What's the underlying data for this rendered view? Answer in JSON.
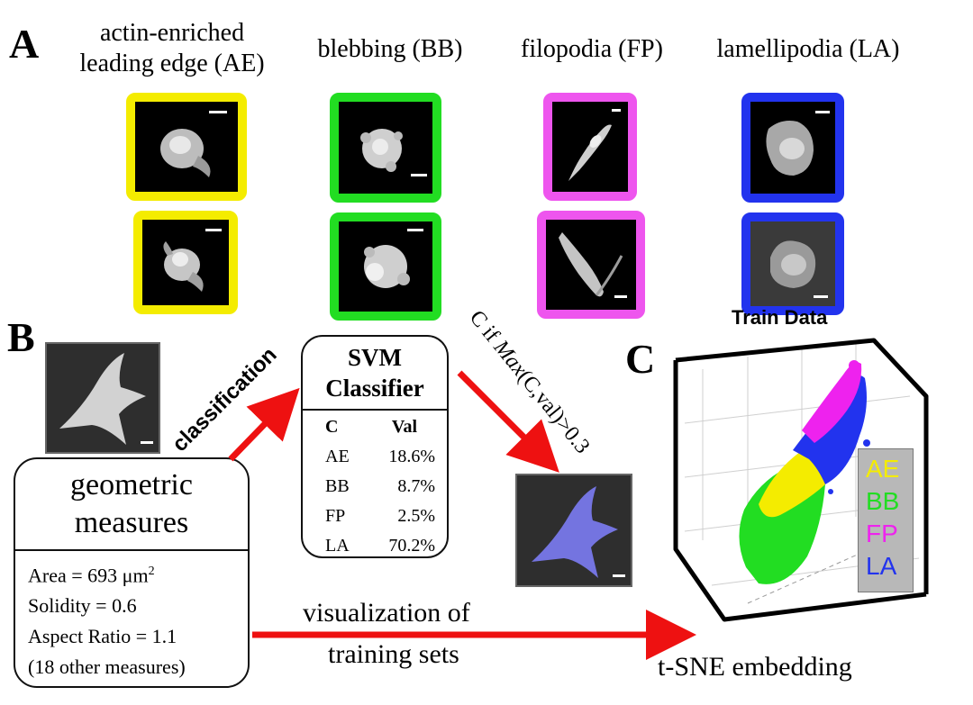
{
  "panels": {
    "a": "A",
    "b": "B",
    "c": "C"
  },
  "categories": [
    {
      "code": "AE",
      "title_line1": "actin-enriched",
      "title_line2": "leading edge (AE)",
      "color": "#f4ec00"
    },
    {
      "code": "BB",
      "title_line1": "blebbing (BB)",
      "title_line2": "",
      "color": "#22dd22"
    },
    {
      "code": "FP",
      "title_line1": "filopodia (FP)",
      "title_line2": "",
      "color": "#ee55ee"
    },
    {
      "code": "LA",
      "title_line1": "lamellipodia (LA)",
      "title_line2": "",
      "color": "#2233ee"
    }
  ],
  "geometric": {
    "title_line1": "geometric",
    "title_line2": "measures",
    "area_prefix": "Area = 693 μm",
    "area_sup": "2",
    "solidity": "Solidity = 0.6",
    "aspect_ratio": "Aspect Ratio = 1.1",
    "other": "(18 other measures)"
  },
  "svm": {
    "title_line1": "SVM",
    "title_line2": "Classifier",
    "col_c": "C",
    "col_val": "Val",
    "rows": [
      {
        "c": "AE",
        "val": "18.6%"
      },
      {
        "c": "BB",
        "val": "8.7%"
      },
      {
        "c": "FP",
        "val": "2.5%"
      },
      {
        "c": "LA",
        "val": "70.2%"
      }
    ]
  },
  "arrows": {
    "classification": "classification",
    "rule_prefix": "C if ",
    "rule_italic": "Max",
    "rule_suffix": "(C,val)>0.3",
    "visualization_line1": "visualization of",
    "visualization_line2": "training sets"
  },
  "tsne": {
    "train_title": "Train Data",
    "embedding_label": "t-SNE embedding",
    "legend": [
      "AE",
      "BB",
      "FP",
      "LA"
    ]
  },
  "colors": {
    "arrow": "#ee1111",
    "legend_bg": "#b8b8b8",
    "classified_tint": "#8080ff"
  }
}
